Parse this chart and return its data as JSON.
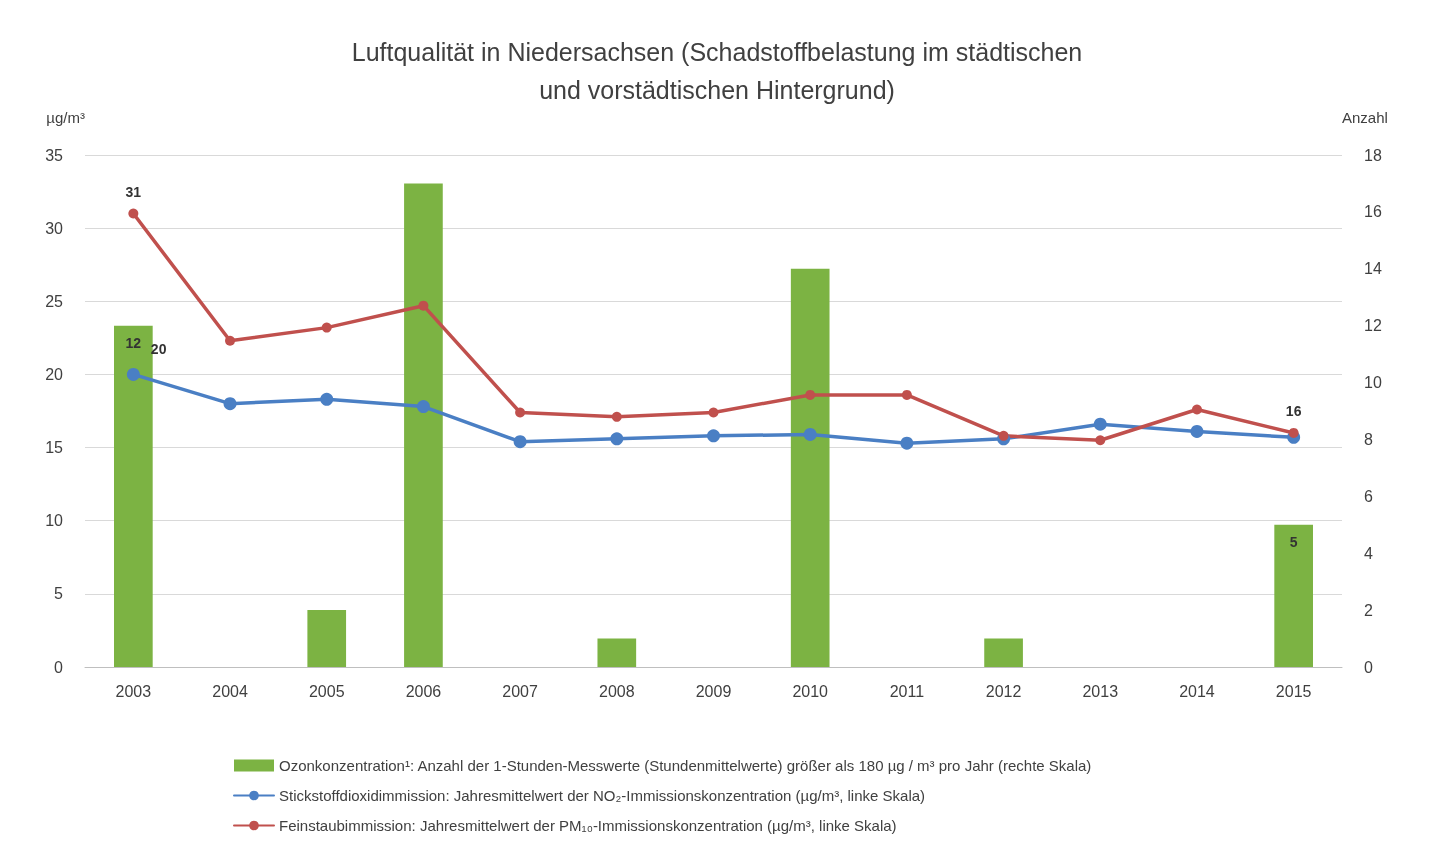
{
  "chart_data": {
    "type": "bar",
    "title": "Luftqualität in Niedersachsen (Schadstoffbelastung im städtischen\nund vorstädtischen Hintergrund)",
    "ylabel": "µg/m³",
    "y2label": "Anzahl",
    "categories": [
      "2003",
      "2004",
      "2005",
      "2006",
      "2007",
      "2008",
      "2009",
      "2010",
      "2011",
      "2012",
      "2013",
      "2014",
      "2015"
    ],
    "series": [
      {
        "name": "Ozonkonzentration¹: Anzahl der 1-Stunden-Messwerte (Stundenmittelwerte) größer als 180 µg / m³ pro Jahr (rechte Skala)",
        "axis": "y2",
        "color": "#7cb343",
        "values": [
          12,
          0,
          2,
          17,
          0,
          1,
          0,
          14,
          0,
          1,
          0,
          0,
          5
        ],
        "value_labels": [
          "12",
          null,
          null,
          null,
          null,
          null,
          null,
          null,
          null,
          null,
          null,
          null,
          "5"
        ]
      },
      {
        "name": "Stickstoffdioxidimmission: Jahresmittelwert der NO₂-Immissionskonzentration (µg/m³, linke Skala)",
        "type": "line",
        "color": "#4a7fc4",
        "values": [
          20,
          18.0,
          18.3,
          17.8,
          15.4,
          15.6,
          15.8,
          15.9,
          15.3,
          15.6,
          16.6,
          16.1,
          15.7
        ],
        "value_labels": [
          "20",
          null,
          null,
          null,
          null,
          null,
          null,
          null,
          null,
          null,
          null,
          null,
          null
        ]
      },
      {
        "name": "Feinstaubimmission: Jahresmittelwert der PM₁₀-Immissionskonzentration (µg/m³, linke Skala)",
        "type": "line",
        "color": "#c0504d",
        "values": [
          31,
          22.3,
          23.2,
          24.7,
          17.4,
          17.1,
          17.4,
          18.6,
          18.6,
          15.8,
          15.5,
          17.6,
          16
        ],
        "value_labels": [
          "31",
          null,
          null,
          null,
          null,
          null,
          null,
          null,
          null,
          null,
          null,
          null,
          "16"
        ]
      }
    ],
    "ylim": [
      0,
      35
    ],
    "yticks": [
      0,
      5,
      10,
      15,
      20,
      25,
      30,
      35
    ],
    "y2lim": [
      0,
      18
    ],
    "y2ticks": [
      0,
      2,
      4,
      6,
      8,
      10,
      12,
      14,
      16,
      18
    ],
    "grid": "y",
    "legend": "bottom",
    "marker": "circle",
    "line_style": "solid"
  }
}
